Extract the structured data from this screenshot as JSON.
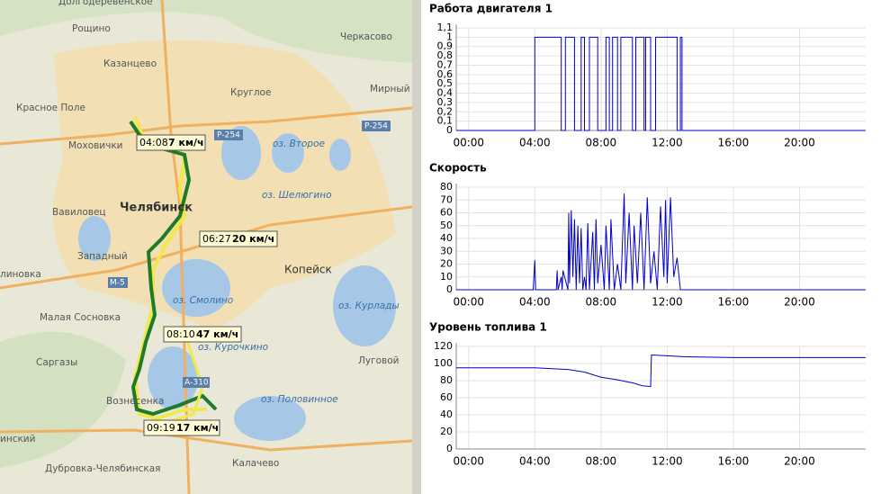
{
  "map": {
    "labels": [
      "Долгодеревенское",
      "Рощино",
      "Казанцево",
      "Черкасово",
      "Круглое",
      "Мирный",
      "Красное Поле",
      "Р-254",
      "Р-254",
      "Моховички",
      "оз. Второе",
      "Челябинск",
      "оз. Шелюгино",
      "Вавиловец",
      "Западный",
      "Копейск",
      "М-5",
      "оз. Смолино",
      "оз. Курлады",
      "Малая Сосновка",
      "линовка",
      "оз. Курочкино",
      "Луговой",
      "Саргазы",
      "Вознесенка",
      "А-310",
      "оз. Половинное",
      "инский",
      "Дубровка-Челябинская",
      "Калачево"
    ],
    "markers": [
      {
        "time": "04:08",
        "speed": "7 км/ч"
      },
      {
        "time": "06:27",
        "speed": "20 км/ч"
      },
      {
        "time": "08:10",
        "speed": "47 км/ч"
      },
      {
        "time": "09:19",
        "speed": "17 км/ч"
      }
    ]
  },
  "chart_data": [
    {
      "type": "line",
      "title": "Работа двигателя 1",
      "color": "#0000cc",
      "grid": true,
      "x": [
        -0.75,
        4.0,
        4.0,
        5.6,
        5.6,
        5.85,
        5.85,
        6.4,
        6.4,
        6.8,
        6.8,
        7.0,
        7.0,
        7.3,
        7.3,
        7.8,
        7.8,
        8.3,
        8.3,
        8.5,
        8.5,
        8.7,
        8.7,
        9.0,
        9.0,
        9.2,
        9.2,
        9.9,
        9.9,
        10.1,
        10.1,
        10.6,
        10.6,
        10.7,
        10.7,
        11.0,
        11.0,
        11.3,
        11.3,
        12.6,
        12.6,
        12.8,
        12.8,
        12.9,
        12.9,
        24
      ],
      "values": [
        0,
        0,
        1,
        1,
        0,
        0,
        1,
        1,
        0,
        0,
        1,
        1,
        0,
        0,
        1,
        1,
        0,
        0,
        1,
        1,
        0,
        0,
        1,
        1,
        0,
        0,
        1,
        1,
        0,
        0,
        1,
        1,
        0,
        0,
        1,
        1,
        0,
        0,
        1,
        1,
        0,
        0,
        1,
        1,
        0,
        0
      ],
      "xlim": [
        -0.75,
        24
      ],
      "ylim": [
        0,
        1.1
      ],
      "xticks": [
        {
          "value": 0,
          "label": "00:00"
        },
        {
          "value": 4,
          "label": "04:00"
        },
        {
          "value": 8,
          "label": "08:00"
        },
        {
          "value": 12,
          "label": "12:00"
        },
        {
          "value": 16,
          "label": "16:00"
        },
        {
          "value": 20,
          "label": "20:00"
        }
      ],
      "yticks": [
        0,
        {
          "value": 0.1,
          "label": "0,1"
        },
        {
          "value": 0.2,
          "label": "0,2"
        },
        {
          "value": 0.3,
          "label": "0,3"
        },
        {
          "value": 0.4,
          "label": "0,4"
        },
        {
          "value": 0.5,
          "label": "0,5"
        },
        {
          "value": 0.6,
          "label": "0,6"
        },
        {
          "value": 0.7,
          "label": "0,7"
        },
        {
          "value": 0.8,
          "label": "0,8"
        },
        {
          "value": 0.9,
          "label": "0,9"
        },
        1,
        {
          "value": 1.1,
          "label": "1,1"
        }
      ]
    },
    {
      "type": "line",
      "title": "Скорость",
      "color": "#0000cc",
      "grid": true,
      "x": [
        -0.75,
        3.9,
        4.0,
        4.05,
        5.3,
        5.35,
        5.4,
        5.6,
        5.65,
        5.7,
        6.0,
        6.05,
        6.1,
        6.2,
        6.3,
        6.4,
        6.5,
        6.6,
        6.7,
        6.8,
        6.9,
        7.0,
        7.1,
        7.2,
        7.3,
        7.5,
        7.6,
        7.7,
        7.8,
        8.0,
        8.2,
        8.3,
        8.5,
        8.6,
        8.8,
        9.0,
        9.2,
        9.4,
        9.5,
        9.7,
        9.9,
        10.0,
        10.2,
        10.4,
        10.6,
        10.8,
        11.0,
        11.2,
        11.4,
        11.6,
        11.8,
        11.9,
        12.0,
        12.2,
        12.4,
        12.6,
        12.8,
        13.0,
        24
      ],
      "values": [
        0,
        0,
        23,
        0,
        0,
        15,
        0,
        10,
        0,
        15,
        0,
        60,
        5,
        62,
        10,
        55,
        0,
        50,
        5,
        48,
        0,
        10,
        0,
        52,
        0,
        45,
        0,
        55,
        5,
        35,
        0,
        50,
        0,
        55,
        0,
        20,
        0,
        75,
        5,
        60,
        0,
        50,
        5,
        60,
        0,
        72,
        5,
        30,
        0,
        65,
        10,
        70,
        5,
        72,
        10,
        25,
        0,
        0,
        0
      ],
      "xlim": [
        -0.75,
        24
      ],
      "ylim": [
        0,
        80
      ],
      "xticks": [
        {
          "value": 0,
          "label": "00:00"
        },
        {
          "value": 4,
          "label": "04:00"
        },
        {
          "value": 8,
          "label": "08:00"
        },
        {
          "value": 12,
          "label": "12:00"
        },
        {
          "value": 16,
          "label": "16:00"
        },
        {
          "value": 20,
          "label": "20:00"
        }
      ],
      "yticks": [
        0,
        10,
        20,
        30,
        40,
        50,
        60,
        70,
        80
      ]
    },
    {
      "type": "line",
      "title": "Уровень топлива 1",
      "color": "#0000cc",
      "grid": true,
      "x": [
        -0.75,
        4.0,
        6.0,
        7.0,
        8.0,
        9.0,
        10.0,
        10.5,
        11.0,
        11.05,
        12.0,
        13.0,
        16.0,
        20.0,
        24
      ],
      "values": [
        95,
        95,
        93,
        90,
        84,
        81,
        77,
        74,
        73,
        110,
        109,
        108,
        107,
        107,
        107
      ],
      "xlim": [
        -0.75,
        24
      ],
      "ylim": [
        0,
        120
      ],
      "xticks": [
        {
          "value": 0,
          "label": "00:00"
        },
        {
          "value": 4,
          "label": "04:00"
        },
        {
          "value": 8,
          "label": "08:00"
        },
        {
          "value": 12,
          "label": "12:00"
        },
        {
          "value": 16,
          "label": "16:00"
        },
        {
          "value": 20,
          "label": "20:00"
        }
      ],
      "yticks": [
        0,
        20,
        40,
        60,
        80,
        100,
        120
      ]
    }
  ]
}
